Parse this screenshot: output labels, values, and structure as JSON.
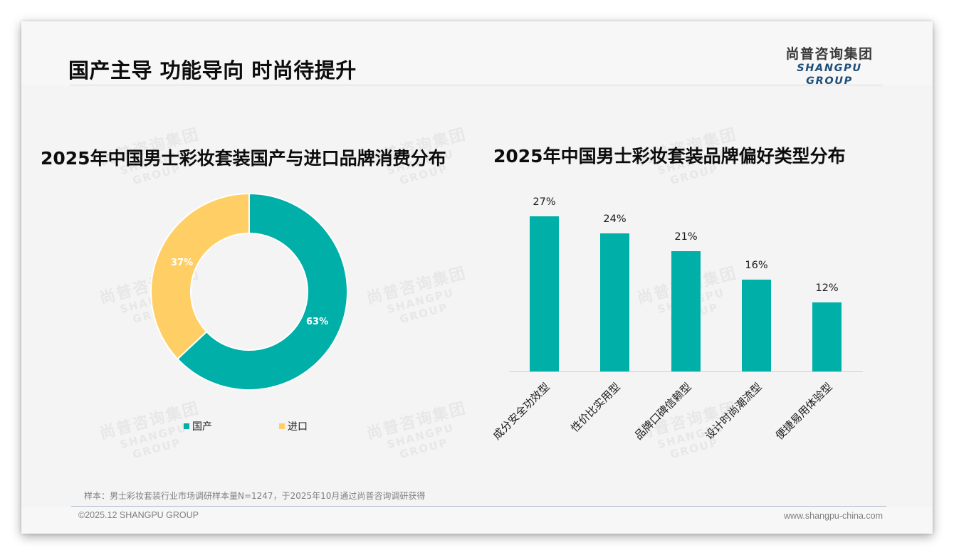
{
  "header": {
    "title": "国产主导 功能导向 时尚待提升",
    "logo_cn": "尚普咨询集团",
    "logo_en": "SHANGPU GROUP"
  },
  "watermark": {
    "cn": "尚普咨询集团",
    "en": "SHANGPU GROUP"
  },
  "colors": {
    "teal": "#00b0a8",
    "yellow": "#ffcf66",
    "logo_blue": "#1f4e79"
  },
  "chart_data": [
    {
      "type": "pie",
      "title": "2025年中国男士彩妆套装国产与进口品牌消费分布",
      "donut": true,
      "categories": [
        "国产",
        "进口"
      ],
      "values": [
        63,
        37
      ],
      "labels": [
        "63%",
        "37%"
      ],
      "colors": [
        "#00b0a8",
        "#ffcf66"
      ],
      "legend_position": "bottom"
    },
    {
      "type": "bar",
      "title": "2025年中国男士彩妆套装品牌偏好类型分布",
      "categories": [
        "成分安全功效型",
        "性价比实用型",
        "品牌口碑信赖型",
        "设计时尚潮流型",
        "便捷易用体验型"
      ],
      "values": [
        27,
        24,
        21,
        16,
        12
      ],
      "labels": [
        "27%",
        "24%",
        "21%",
        "16%",
        "12%"
      ],
      "xlabel": "",
      "ylabel": "",
      "ylim": [
        0,
        30
      ],
      "grid": false,
      "color": "#00b0a8"
    }
  ],
  "legend": {
    "items": [
      {
        "label": "国产"
      },
      {
        "label": "进口"
      }
    ]
  },
  "footer": {
    "note": "样本：男士彩妆套装行业市场调研样本量N=1247，于2025年10月通过尚普咨询调研获得",
    "copyright": "©2025.12 SHANGPU GROUP",
    "website": "www.shangpu-china.com"
  }
}
